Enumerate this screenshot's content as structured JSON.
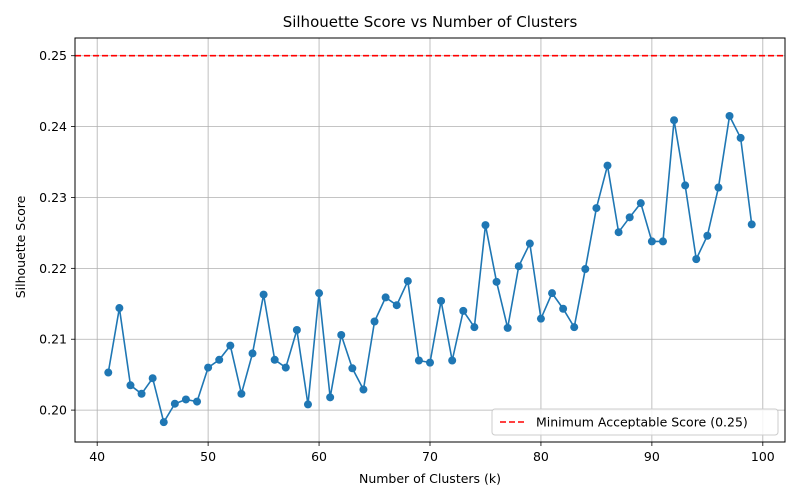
{
  "chart_data": {
    "type": "line",
    "title": "Silhouette Score vs Number of Clusters",
    "xlabel": "Number of Clusters (k)",
    "ylabel": "Silhouette Score",
    "xlim": [
      38,
      102
    ],
    "ylim": [
      0.1955,
      0.2525
    ],
    "xticks": [
      40,
      50,
      60,
      70,
      80,
      90,
      100
    ],
    "yticks": [
      0.2,
      0.21,
      0.22,
      0.23,
      0.24,
      0.25
    ],
    "xtick_labels": [
      "40",
      "50",
      "60",
      "70",
      "80",
      "90",
      "100"
    ],
    "ytick_labels": [
      "0.20",
      "0.21",
      "0.22",
      "0.23",
      "0.24",
      "0.25"
    ],
    "grid": true,
    "legend_position": "lower-right",
    "series": [
      {
        "name": "",
        "color": "#1f77b4",
        "marker": "circle",
        "x": [
          41,
          42,
          43,
          44,
          45,
          46,
          47,
          48,
          49,
          50,
          51,
          52,
          53,
          54,
          55,
          56,
          57,
          58,
          59,
          60,
          61,
          62,
          63,
          64,
          65,
          66,
          67,
          68,
          69,
          70,
          71,
          72,
          73,
          74,
          75,
          76,
          77,
          78,
          79,
          80,
          81,
          82,
          83,
          84,
          85,
          86,
          87,
          88,
          89,
          90,
          91,
          92,
          93,
          94,
          95,
          96,
          97,
          98,
          99
        ],
        "y": [
          0.2053,
          0.2144,
          0.2035,
          0.2023,
          0.2045,
          0.1983,
          0.2009,
          0.2015,
          0.2012,
          0.206,
          0.2071,
          0.2091,
          0.2023,
          0.208,
          0.2163,
          0.2071,
          0.206,
          0.2113,
          0.2008,
          0.2165,
          0.2018,
          0.2106,
          0.2059,
          0.2029,
          0.2125,
          0.2159,
          0.2148,
          0.2182,
          0.207,
          0.2067,
          0.2154,
          0.207,
          0.214,
          0.2117,
          0.2261,
          0.2181,
          0.2116,
          0.2203,
          0.2235,
          0.2129,
          0.2165,
          0.2143,
          0.2117,
          0.2199,
          0.2285,
          0.2345,
          0.2251,
          0.2272,
          0.2292,
          0.2238,
          0.2238,
          0.2409,
          0.2317,
          0.2213,
          0.2246,
          0.2314,
          0.2415,
          0.2384,
          0.2262
        ]
      }
    ],
    "reference_lines": [
      {
        "orientation": "horizontal",
        "y": 0.25,
        "color": "#ff0000",
        "style": "dashed",
        "label": "Minimum Acceptable Score (0.25)"
      }
    ]
  }
}
